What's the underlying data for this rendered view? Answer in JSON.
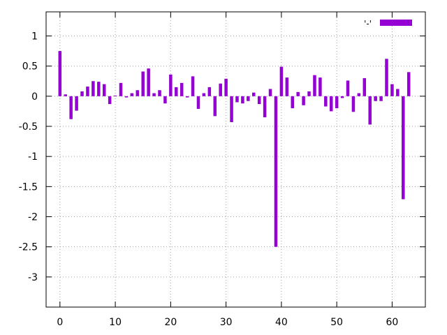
{
  "chart_data": {
    "type": "bar",
    "title": "",
    "xlabel": "",
    "ylabel": "",
    "xlim": [
      -2.5,
      66
    ],
    "ylim": [
      -3.5,
      1.4
    ],
    "xticks": [
      0,
      10,
      20,
      30,
      40,
      50,
      60
    ],
    "yticks": [
      1,
      0.5,
      0,
      -0.5,
      -1,
      -1.5,
      -2,
      -2.5,
      -3
    ],
    "grid": true,
    "legend": {
      "placement": "top-right",
      "label": "'-'"
    },
    "bar_color": "#9400d3",
    "series": [
      {
        "name": "'-'",
        "x": [
          0,
          1,
          2,
          3,
          4,
          5,
          6,
          7,
          8,
          9,
          10,
          11,
          12,
          13,
          14,
          15,
          16,
          17,
          18,
          19,
          20,
          21,
          22,
          23,
          24,
          25,
          26,
          27,
          28,
          29,
          30,
          31,
          32,
          33,
          34,
          35,
          36,
          37,
          38,
          39,
          40,
          41,
          42,
          43,
          44,
          45,
          46,
          47,
          48,
          49,
          50,
          51,
          52,
          53,
          54,
          55,
          56,
          57,
          58,
          59,
          60,
          61,
          62,
          63
        ],
        "values": [
          0.75,
          0.03,
          -0.38,
          -0.24,
          0.08,
          0.16,
          0.25,
          0.24,
          0.2,
          -0.13,
          0.01,
          0.22,
          -0.02,
          0.05,
          0.1,
          0.41,
          0.46,
          0.05,
          0.1,
          -0.12,
          0.36,
          0.15,
          0.22,
          -0.02,
          0.33,
          -0.21,
          0.05,
          0.15,
          -0.33,
          0.21,
          0.29,
          -0.43,
          -0.1,
          -0.12,
          -0.08,
          0.06,
          -0.13,
          -0.35,
          0.12,
          -2.5,
          0.49,
          0.31,
          -0.2,
          0.07,
          -0.15,
          0.08,
          0.35,
          0.31,
          -0.17,
          -0.25,
          -0.2,
          -0.03,
          0.26,
          -0.26,
          0.05,
          0.3,
          -0.47,
          -0.08,
          -0.08,
          0.62,
          0.2,
          0.12,
          -1.71,
          0.4
        ]
      }
    ]
  }
}
